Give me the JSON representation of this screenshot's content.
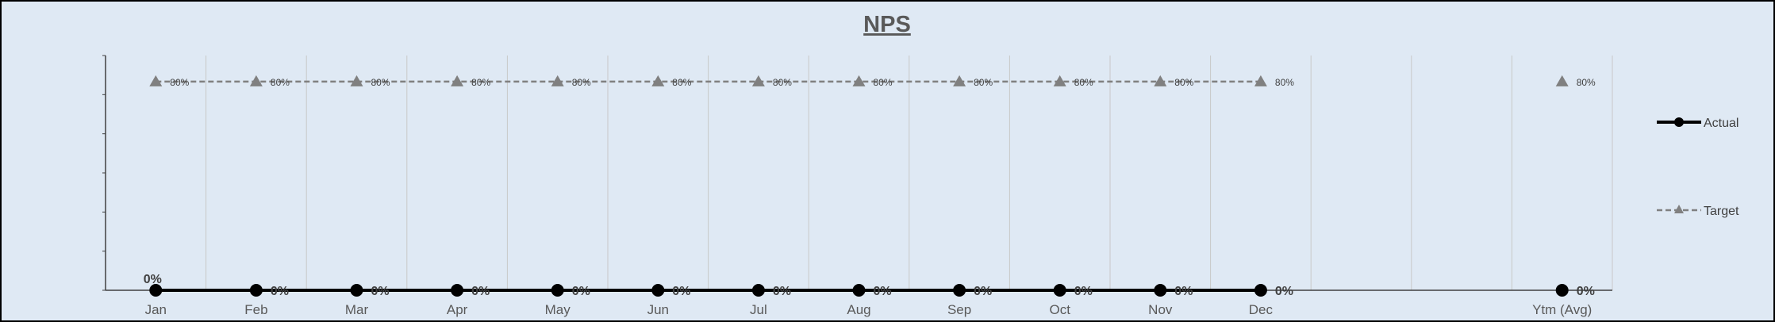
{
  "chart_data": {
    "type": "line",
    "title": "NPS",
    "categories": [
      "Jan",
      "Feb",
      "Mar",
      "Apr",
      "May",
      "Jun",
      "Jul",
      "Aug",
      "Sep",
      "Oct",
      "Nov",
      "Dec",
      "",
      "",
      "Ytm (Avg)"
    ],
    "ylim": [
      0,
      0.9
    ],
    "grid": "vertical",
    "legend_position": "right",
    "series": [
      {
        "name": "Actual",
        "color": "#000000",
        "line_style": "solid",
        "marker": "circle",
        "values": [
          0,
          0,
          0,
          0,
          0,
          0,
          0,
          0,
          0,
          0,
          0,
          0,
          null,
          null,
          0
        ],
        "labels": [
          "0%",
          "0%",
          "0%",
          "0%",
          "0%",
          "0%",
          "0%",
          "0%",
          "0%",
          "0%",
          "0%",
          "0%",
          "",
          "",
          "0%"
        ]
      },
      {
        "name": "Target",
        "color": "#808080",
        "line_style": "dashed",
        "marker": "triangle",
        "values": [
          0.8,
          0.8,
          0.8,
          0.8,
          0.8,
          0.8,
          0.8,
          0.8,
          0.8,
          0.8,
          0.8,
          0.8,
          null,
          null,
          0.8
        ],
        "labels": [
          "80%",
          "80%",
          "80%",
          "80%",
          "80%",
          "80%",
          "80%",
          "80%",
          "80%",
          "80%",
          "80%",
          "80%",
          "",
          "",
          "80%"
        ]
      }
    ]
  }
}
